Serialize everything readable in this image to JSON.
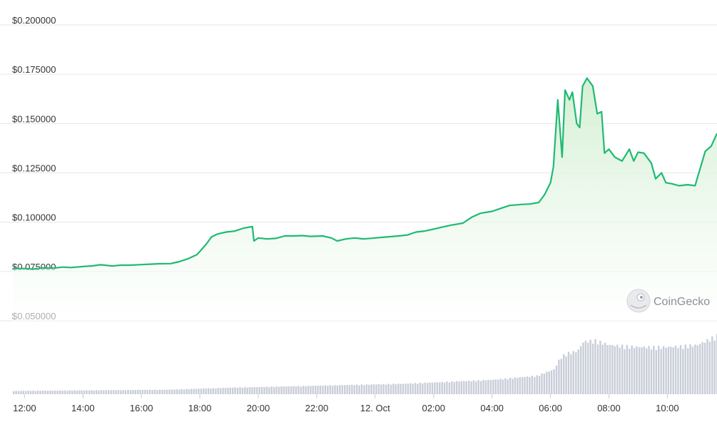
{
  "watermark": {
    "text": "CoinGecko",
    "icon": "gecko-logo-icon"
  },
  "colors": {
    "line": "#1fba72",
    "area_top": "#cfeecf",
    "area_bottom": "#ffffff",
    "grid": "#e6e6e6",
    "volume": "#c9cdd8"
  },
  "chart_data": {
    "type": "area",
    "title": "",
    "xlabel": "",
    "ylabel": "",
    "grid": true,
    "legend": "none",
    "ylim": [
      0.05,
      0.2
    ],
    "y_ticks": [
      "$0.200000",
      "$0.175000",
      "$0.150000",
      "$0.125000",
      "$0.100000",
      "$0.075000",
      "$0.050000"
    ],
    "y_tick_values": [
      0.2,
      0.175,
      0.15,
      0.125,
      0.1,
      0.075,
      0.05
    ],
    "x_ticks": [
      "12:00",
      "14:00",
      "16:00",
      "18:00",
      "20:00",
      "22:00",
      "12. Oct",
      "02:00",
      "04:00",
      "06:00",
      "08:00",
      "10:00"
    ],
    "x_tick_hours": [
      12,
      14,
      16,
      18,
      20,
      22,
      24,
      26,
      28,
      30,
      32,
      34
    ],
    "xlim_hours": [
      11.6,
      35.7
    ],
    "series": [
      {
        "values": [
          [
            11.6,
            0.0765
          ],
          [
            12.0,
            0.0765
          ],
          [
            12.3,
            0.0762
          ],
          [
            12.6,
            0.0768
          ],
          [
            13.0,
            0.0767
          ],
          [
            13.3,
            0.0772
          ],
          [
            13.6,
            0.077
          ],
          [
            14.0,
            0.0775
          ],
          [
            14.3,
            0.0778
          ],
          [
            14.6,
            0.0784
          ],
          [
            15.0,
            0.0778
          ],
          [
            15.3,
            0.0782
          ],
          [
            15.6,
            0.0782
          ],
          [
            16.0,
            0.0785
          ],
          [
            16.3,
            0.0787
          ],
          [
            16.6,
            0.0789
          ],
          [
            17.0,
            0.079
          ],
          [
            17.3,
            0.08
          ],
          [
            17.6,
            0.0815
          ],
          [
            17.9,
            0.0835
          ],
          [
            18.2,
            0.0885
          ],
          [
            18.4,
            0.0925
          ],
          [
            18.6,
            0.094
          ],
          [
            18.9,
            0.095
          ],
          [
            19.2,
            0.0955
          ],
          [
            19.5,
            0.097
          ],
          [
            19.8,
            0.0978
          ],
          [
            19.85,
            0.0905
          ],
          [
            20.0,
            0.092
          ],
          [
            20.3,
            0.0915
          ],
          [
            20.6,
            0.0918
          ],
          [
            20.9,
            0.093
          ],
          [
            21.2,
            0.093
          ],
          [
            21.5,
            0.0932
          ],
          [
            21.8,
            0.0928
          ],
          [
            22.2,
            0.093
          ],
          [
            22.5,
            0.092
          ],
          [
            22.7,
            0.0905
          ],
          [
            23.0,
            0.0915
          ],
          [
            23.3,
            0.092
          ],
          [
            23.6,
            0.0915
          ],
          [
            24.0,
            0.092
          ],
          [
            24.4,
            0.0925
          ],
          [
            24.8,
            0.093
          ],
          [
            25.1,
            0.0935
          ],
          [
            25.4,
            0.095
          ],
          [
            25.7,
            0.0955
          ],
          [
            26.0,
            0.0965
          ],
          [
            26.3,
            0.0975
          ],
          [
            26.6,
            0.0985
          ],
          [
            27.0,
            0.0995
          ],
          [
            27.3,
            0.1025
          ],
          [
            27.6,
            0.1045
          ],
          [
            28.0,
            0.1055
          ],
          [
            28.3,
            0.107
          ],
          [
            28.6,
            0.1085
          ],
          [
            29.0,
            0.109
          ],
          [
            29.3,
            0.1092
          ],
          [
            29.6,
            0.11
          ],
          [
            29.8,
            0.114
          ],
          [
            30.0,
            0.12
          ],
          [
            30.1,
            0.128
          ],
          [
            30.25,
            0.162
          ],
          [
            30.4,
            0.133
          ],
          [
            30.5,
            0.167
          ],
          [
            30.65,
            0.162
          ],
          [
            30.75,
            0.166
          ],
          [
            30.9,
            0.15
          ],
          [
            31.0,
            0.148
          ],
          [
            31.1,
            0.169
          ],
          [
            31.25,
            0.173
          ],
          [
            31.45,
            0.169
          ],
          [
            31.6,
            0.155
          ],
          [
            31.75,
            0.156
          ],
          [
            31.85,
            0.135
          ],
          [
            32.0,
            0.137
          ],
          [
            32.2,
            0.133
          ],
          [
            32.45,
            0.131
          ],
          [
            32.7,
            0.137
          ],
          [
            32.85,
            0.131
          ],
          [
            33.0,
            0.1355
          ],
          [
            33.2,
            0.135
          ],
          [
            33.45,
            0.13
          ],
          [
            33.6,
            0.122
          ],
          [
            33.8,
            0.125
          ],
          [
            33.95,
            0.12
          ],
          [
            34.15,
            0.1195
          ],
          [
            34.4,
            0.1185
          ],
          [
            34.7,
            0.119
          ],
          [
            34.95,
            0.1185
          ],
          [
            35.1,
            0.126
          ],
          [
            35.3,
            0.136
          ],
          [
            35.5,
            0.1385
          ],
          [
            35.7,
            0.145
          ]
        ]
      }
    ],
    "volume_relative": [
      [
        11.6,
        0.05
      ],
      [
        17.0,
        0.07
      ],
      [
        19.0,
        0.1
      ],
      [
        22.0,
        0.13
      ],
      [
        25.0,
        0.16
      ],
      [
        28.0,
        0.22
      ],
      [
        29.5,
        0.28
      ],
      [
        30.1,
        0.38
      ],
      [
        30.3,
        0.55
      ],
      [
        30.5,
        0.62
      ],
      [
        30.9,
        0.66
      ],
      [
        31.1,
        0.8
      ],
      [
        31.5,
        0.82
      ],
      [
        32.0,
        0.75
      ],
      [
        33.0,
        0.72
      ],
      [
        34.0,
        0.72
      ],
      [
        35.0,
        0.75
      ],
      [
        35.7,
        0.9
      ]
    ]
  }
}
